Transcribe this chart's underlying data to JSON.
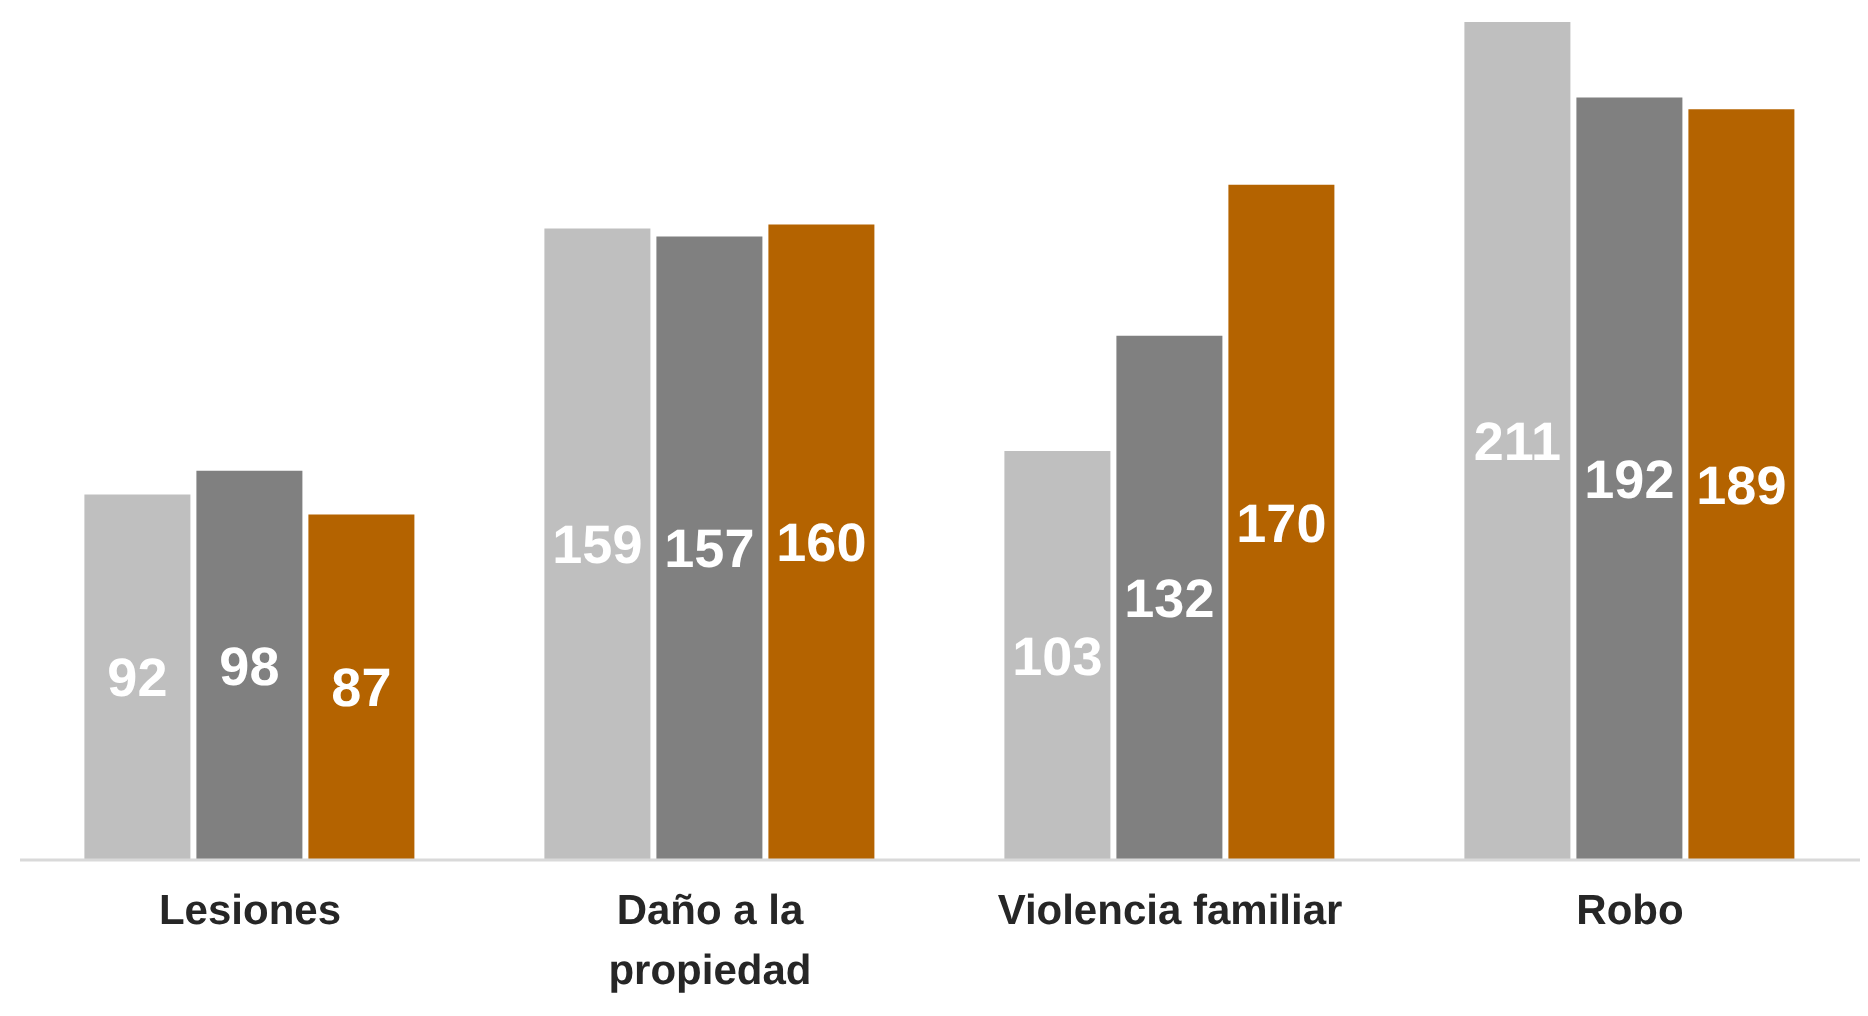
{
  "chart_data": {
    "type": "bar",
    "categories": [
      "Lesiones",
      "Daño a la propiedad",
      "Violencia familiar",
      "Robo"
    ],
    "series": [
      {
        "color": "#bfbfbf",
        "values": [
          92,
          159,
          103,
          211
        ]
      },
      {
        "color": "#808080",
        "values": [
          98,
          157,
          132,
          192
        ]
      },
      {
        "color": "#b46300",
        "values": [
          87,
          160,
          170,
          189
        ]
      }
    ],
    "ylim": [
      0,
      211
    ],
    "data_labels": true,
    "tick_labels": "x"
  }
}
